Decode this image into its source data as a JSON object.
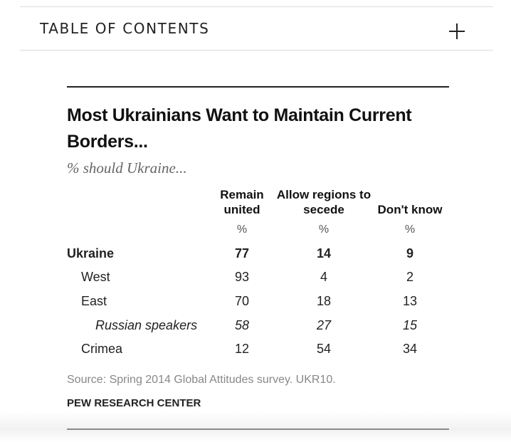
{
  "toc": {
    "title": "TABLE OF CONTENTS",
    "toggle_icon": "plus-icon"
  },
  "chart_data": {
    "type": "table",
    "title": "Most Ukrainians Want to Maintain Current Borders...",
    "subtitle": "% should Ukraine...",
    "columns": [
      {
        "label": "Remain united",
        "unit": "%"
      },
      {
        "label": "Allow regions to secede",
        "unit": "%"
      },
      {
        "label": "Don't know",
        "unit": "%"
      }
    ],
    "rows": [
      {
        "label": "Ukraine",
        "style": "bold",
        "indent": 0,
        "values": [
          "77",
          "14",
          "9"
        ]
      },
      {
        "label": "West",
        "style": "normal",
        "indent": 1,
        "values": [
          "93",
          "4",
          "2"
        ]
      },
      {
        "label": "East",
        "style": "normal",
        "indent": 1,
        "values": [
          "70",
          "18",
          "13"
        ]
      },
      {
        "label": "Russian speakers",
        "style": "italic",
        "indent": 2,
        "values": [
          "58",
          "27",
          "15"
        ]
      },
      {
        "label": "Crimea",
        "style": "normal",
        "indent": 1,
        "values": [
          "12",
          "54",
          "34"
        ]
      }
    ],
    "source": "Source: Spring 2014 Global Attitudes survey. UKR10.",
    "credit": "PEW RESEARCH CENTER"
  }
}
